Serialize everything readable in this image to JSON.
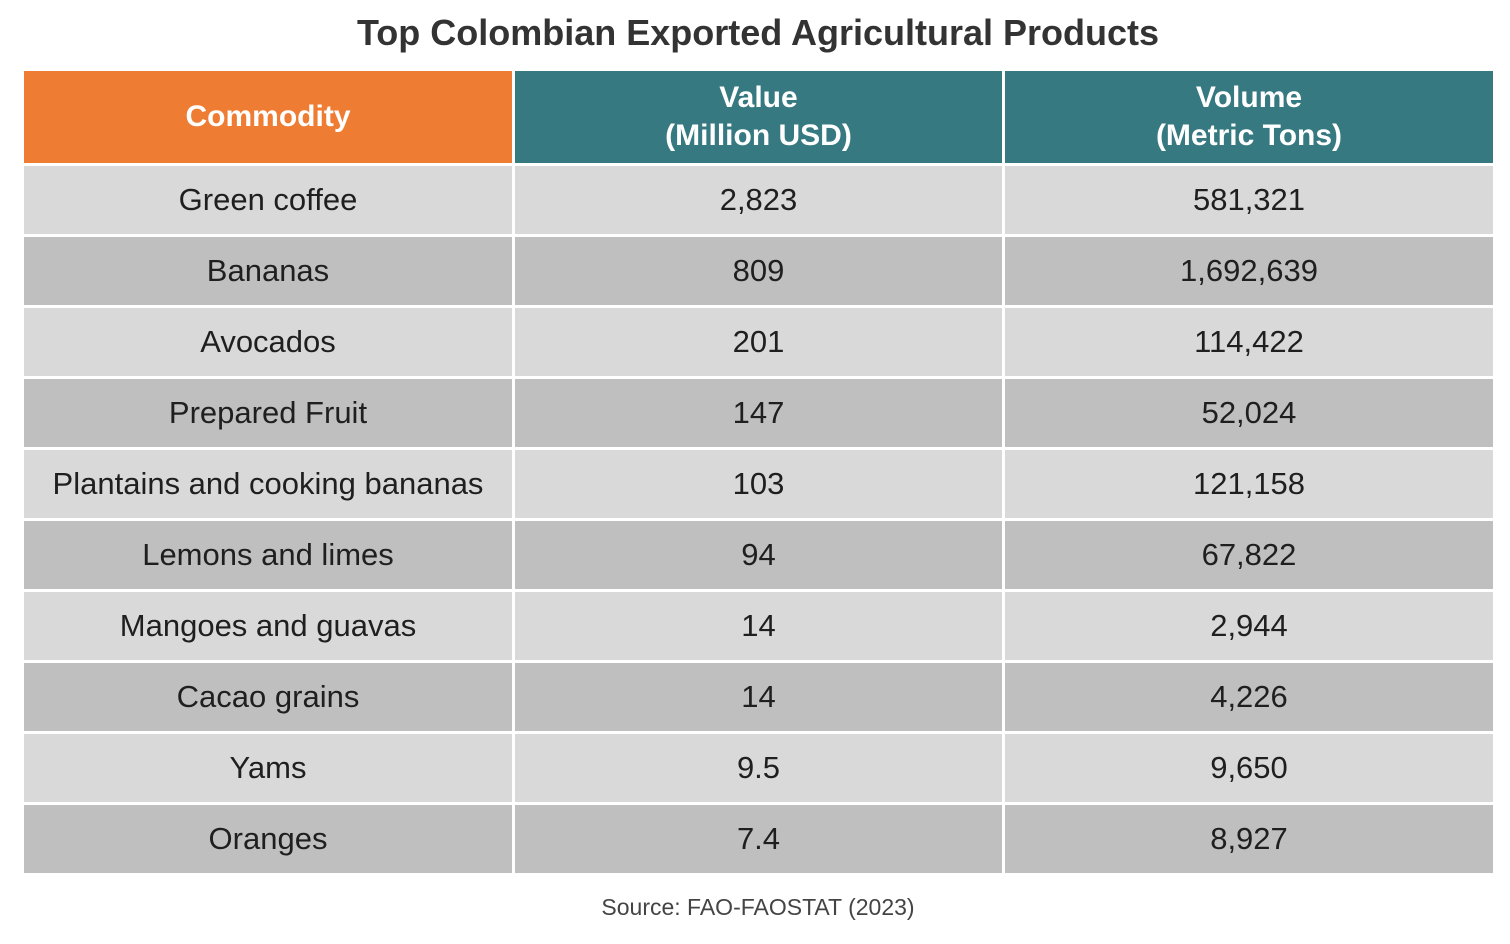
{
  "title": "Top Colombian Exported Agricultural Products",
  "chart_data": {
    "type": "table",
    "title": "Top Colombian Exported Agricultural Products",
    "columns": [
      {
        "label": "Commodity"
      },
      {
        "label_line1": "Value",
        "label_line2": "(Million USD)"
      },
      {
        "label_line1": "Volume",
        "label_line2": "(Metric Tons)"
      }
    ],
    "rows": [
      {
        "commodity": "Green coffee",
        "value": "2,823",
        "volume": "581,321"
      },
      {
        "commodity": "Bananas",
        "value": "809",
        "volume": "1,692,639"
      },
      {
        "commodity": "Avocados",
        "value": "201",
        "volume": "114,422"
      },
      {
        "commodity": "Prepared Fruit",
        "value": "147",
        "volume": "52,024"
      },
      {
        "commodity": "Plantains and cooking bananas",
        "value": "103",
        "volume": "121,158"
      },
      {
        "commodity": "Lemons and limes",
        "value": "94",
        "volume": "67,822"
      },
      {
        "commodity": "Mangoes and guavas",
        "value": "14",
        "volume": "2,944"
      },
      {
        "commodity": "Cacao grains",
        "value": "14",
        "volume": "4,226"
      },
      {
        "commodity": "Yams",
        "value": "9.5",
        "volume": "9,650"
      },
      {
        "commodity": "Oranges",
        "value": "7.4",
        "volume": "8,927"
      }
    ]
  },
  "source": "Source: FAO-FAOSTAT (2023)",
  "colors": {
    "header_commodity": "#ee7d33",
    "header_teal": "#377980",
    "row_light": "#d9d9d9",
    "row_dark": "#bfbfbf"
  }
}
